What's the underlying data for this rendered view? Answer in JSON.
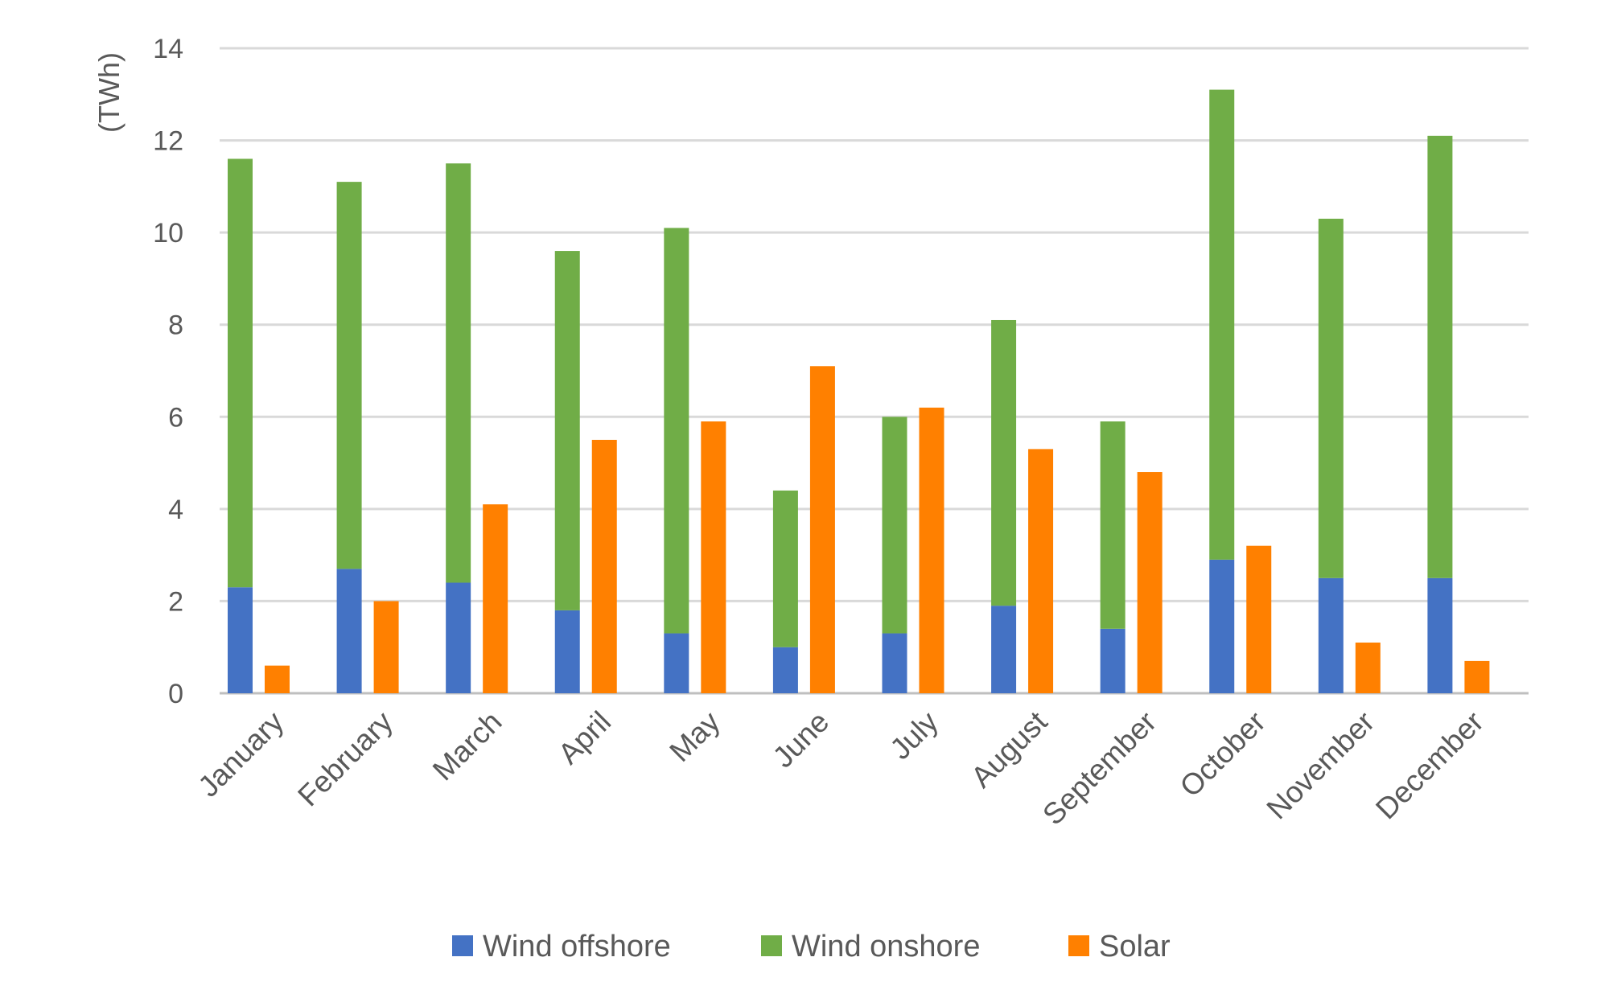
{
  "chart_data": {
    "type": "bar",
    "title": "",
    "xlabel": "",
    "ylabel": "(TWh)",
    "ylim": [
      0,
      14
    ],
    "yticks": [
      0,
      2,
      4,
      6,
      8,
      10,
      12,
      14
    ],
    "grid": true,
    "legend_position": "bottom",
    "categories": [
      "January",
      "February",
      "March",
      "April",
      "May",
      "June",
      "July",
      "August",
      "September",
      "October",
      "November",
      "December"
    ],
    "series": [
      {
        "name": "Wind offshore",
        "stack": "wind",
        "color": "#4472C4",
        "values": [
          2.3,
          2.7,
          2.4,
          1.8,
          1.3,
          1.0,
          1.3,
          1.9,
          1.4,
          2.9,
          2.5,
          2.5
        ]
      },
      {
        "name": "Wind onshore",
        "stack": "wind",
        "color": "#70AD47",
        "values": [
          9.3,
          8.4,
          9.1,
          7.8,
          8.8,
          3.4,
          4.7,
          6.2,
          4.5,
          10.2,
          7.8,
          9.6
        ]
      },
      {
        "name": "Solar",
        "stack": "solar",
        "color": "#FF8000",
        "values": [
          0.6,
          2.0,
          4.1,
          5.5,
          5.9,
          7.1,
          6.2,
          5.3,
          4.8,
          3.2,
          1.1,
          0.7
        ]
      }
    ]
  }
}
